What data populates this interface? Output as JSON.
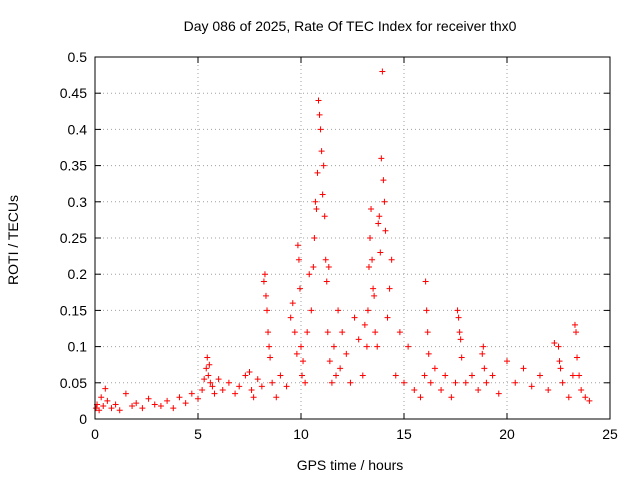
{
  "chart_data": {
    "type": "scatter",
    "title": "Day 086 of 2025, Rate Of TEC Index for receiver thx0",
    "xlabel": "GPS time / hours",
    "ylabel": "ROTI / TECUs",
    "xlim": [
      0,
      25
    ],
    "ylim": [
      0,
      0.5
    ],
    "x_ticks": [
      "0",
      "5",
      "10",
      "15",
      "20",
      "25"
    ],
    "y_ticks": [
      "0",
      "0.05",
      "0.1",
      "0.15",
      "0.2",
      "0.25",
      "0.3",
      "0.35",
      "0.4",
      "0.45",
      "0.5"
    ],
    "grid": true,
    "marker": "plus",
    "color": "#ff0000",
    "series": [
      {
        "x": [
          0.05,
          0.1,
          0.2,
          0.3,
          0.4,
          0.5,
          0.6,
          0.8,
          1.0,
          1.2,
          1.5,
          1.8,
          2.0,
          2.3,
          2.6,
          2.9,
          3.2,
          3.5,
          3.8,
          4.1,
          4.4,
          4.7,
          5.0,
          5.2,
          5.3,
          5.4,
          5.45,
          5.5,
          5.55,
          5.6,
          5.7,
          5.8,
          6.0,
          6.2,
          6.5,
          6.8,
          7.0,
          7.3,
          7.5,
          7.6,
          7.7,
          7.9,
          8.1,
          8.2,
          8.25,
          8.3,
          8.35,
          8.4,
          8.45,
          8.5,
          8.6,
          8.8,
          9.0,
          9.3,
          9.5,
          9.6,
          9.7,
          9.8,
          9.85,
          9.9,
          9.95,
          10.0,
          10.05,
          10.1,
          10.2,
          10.3,
          10.4,
          10.5,
          10.6,
          10.65,
          10.7,
          10.75,
          10.8,
          10.85,
          10.9,
          10.95,
          11.0,
          11.05,
          11.1,
          11.15,
          11.2,
          11.25,
          11.3,
          11.35,
          11.4,
          11.5,
          11.6,
          11.7,
          11.8,
          11.9,
          12.0,
          12.2,
          12.4,
          12.6,
          12.8,
          13.0,
          13.1,
          13.2,
          13.25,
          13.3,
          13.35,
          13.4,
          13.45,
          13.5,
          13.55,
          13.6,
          13.7,
          13.75,
          13.8,
          13.85,
          13.9,
          13.95,
          14.0,
          14.05,
          14.1,
          14.2,
          14.3,
          14.4,
          14.6,
          14.8,
          15.0,
          15.2,
          15.5,
          15.8,
          16.0,
          16.05,
          16.1,
          16.15,
          16.2,
          16.3,
          16.5,
          16.8,
          17.0,
          17.3,
          17.5,
          17.6,
          17.65,
          17.7,
          17.75,
          17.8,
          18.0,
          18.3,
          18.6,
          18.8,
          18.85,
          18.9,
          19.0,
          19.3,
          19.6,
          20.0,
          20.4,
          20.8,
          21.2,
          21.6,
          22.0,
          22.3,
          22.5,
          22.55,
          22.6,
          22.7,
          23.0,
          23.2,
          23.3,
          23.35,
          23.4,
          23.5,
          23.6,
          23.8,
          24.0
        ],
        "y": [
          0.015,
          0.02,
          0.012,
          0.03,
          0.018,
          0.042,
          0.025,
          0.015,
          0.02,
          0.012,
          0.035,
          0.018,
          0.022,
          0.015,
          0.028,
          0.02,
          0.018,
          0.025,
          0.015,
          0.03,
          0.022,
          0.035,
          0.028,
          0.04,
          0.055,
          0.07,
          0.085,
          0.06,
          0.075,
          0.05,
          0.045,
          0.035,
          0.055,
          0.04,
          0.05,
          0.035,
          0.045,
          0.06,
          0.065,
          0.04,
          0.03,
          0.055,
          0.045,
          0.19,
          0.2,
          0.17,
          0.15,
          0.12,
          0.1,
          0.085,
          0.05,
          0.03,
          0.06,
          0.045,
          0.14,
          0.16,
          0.12,
          0.09,
          0.24,
          0.22,
          0.18,
          0.1,
          0.06,
          0.08,
          0.05,
          0.12,
          0.2,
          0.15,
          0.21,
          0.25,
          0.3,
          0.29,
          0.34,
          0.44,
          0.42,
          0.4,
          0.37,
          0.31,
          0.35,
          0.28,
          0.22,
          0.19,
          0.12,
          0.21,
          0.08,
          0.05,
          0.1,
          0.06,
          0.15,
          0.07,
          0.12,
          0.09,
          0.05,
          0.14,
          0.11,
          0.06,
          0.13,
          0.1,
          0.15,
          0.21,
          0.25,
          0.29,
          0.22,
          0.18,
          0.17,
          0.12,
          0.1,
          0.27,
          0.28,
          0.23,
          0.36,
          0.48,
          0.33,
          0.3,
          0.26,
          0.14,
          0.18,
          0.22,
          0.06,
          0.12,
          0.05,
          0.1,
          0.04,
          0.03,
          0.06,
          0.19,
          0.15,
          0.12,
          0.09,
          0.05,
          0.07,
          0.04,
          0.06,
          0.03,
          0.05,
          0.15,
          0.14,
          0.12,
          0.11,
          0.085,
          0.05,
          0.06,
          0.04,
          0.09,
          0.1,
          0.07,
          0.05,
          0.06,
          0.035,
          0.08,
          0.05,
          0.07,
          0.045,
          0.06,
          0.04,
          0.105,
          0.1,
          0.08,
          0.07,
          0.05,
          0.03,
          0.06,
          0.13,
          0.12,
          0.085,
          0.06,
          0.04,
          0.03,
          0.025
        ]
      }
    ]
  }
}
